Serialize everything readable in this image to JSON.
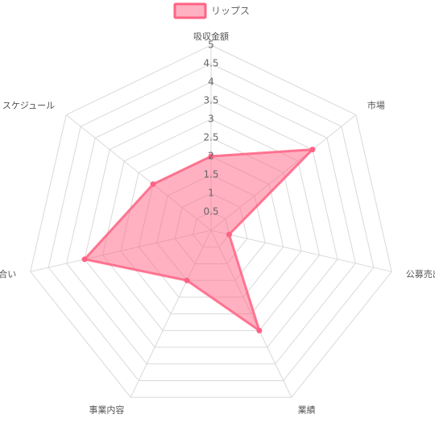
{
  "chart_data": {
    "type": "radar",
    "axes": [
      "吸収金額",
      "市場",
      "公募売出比",
      "業績",
      "事業内容",
      "地合い",
      "スケジュール"
    ],
    "series": [
      {
        "name": "リップス",
        "values": [
          2,
          3.5,
          0.5,
          3,
          1.5,
          3.5,
          2
        ],
        "color": "#ff6384",
        "fill": "rgba(255, 99, 132, 0.5)"
      }
    ],
    "r_min": 0,
    "r_max": 5,
    "ticks": [
      "0.5",
      "1",
      "1.5",
      "2",
      "2.5",
      "3",
      "3.5",
      "4",
      "4.5",
      "5"
    ],
    "tick_values": [
      0.5,
      1,
      1.5,
      2,
      2.5,
      3,
      3.5,
      4,
      4.5,
      5
    ],
    "legend_position": "top",
    "grid": true
  }
}
